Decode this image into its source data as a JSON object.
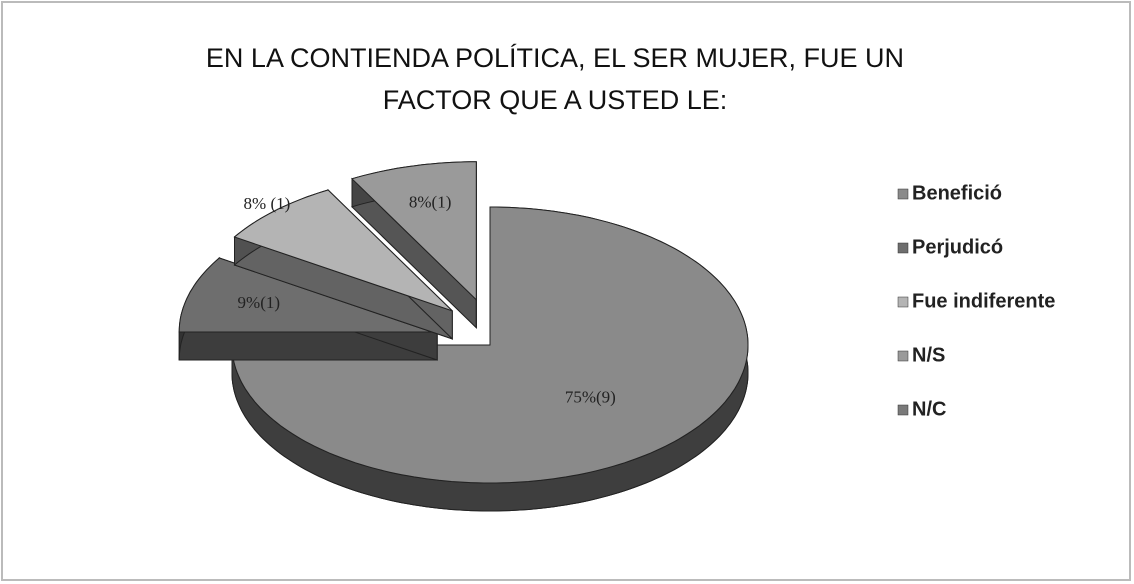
{
  "chart_data": {
    "type": "pie3d",
    "title": [
      "EN LA CONTIENDA POLÍTICA, EL SER MUJER, FUE UN",
      "FACTOR QUE A USTED LE:"
    ],
    "categories": [
      "Benefició",
      "Perjudicó",
      "Fue indiferente",
      "N/S",
      "N/C"
    ],
    "values": [
      75,
      9,
      8,
      8,
      0
    ],
    "value_labels": [
      "75%(9)",
      "9%(1)",
      "8% (1)",
      "8%(1)",
      null
    ],
    "colors": [
      "#8a8a8a",
      "#6e6e6e",
      "#b4b4b4",
      "#9a9a9a",
      "#7a7a7a"
    ],
    "legend": "right"
  }
}
